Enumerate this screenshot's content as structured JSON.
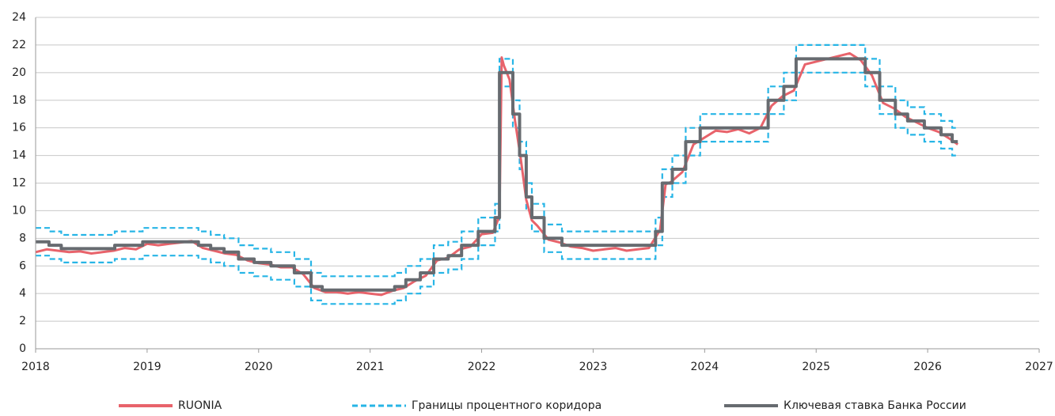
{
  "chart_data": {
    "type": "line",
    "xlim": [
      2018,
      2027
    ],
    "xticks": [
      2018,
      2019,
      2020,
      2021,
      2022,
      2023,
      2024,
      2025,
      2026,
      2027
    ],
    "ylim": [
      0,
      24
    ],
    "yticks": [
      0,
      2,
      4,
      6,
      8,
      10,
      12,
      14,
      16,
      18,
      20,
      22,
      24
    ],
    "grid": true,
    "legend": "bottom",
    "series": [
      {
        "name": "RUONIA",
        "color": "#e8636b",
        "x": [
          2018.0,
          2018.1,
          2018.2,
          2018.3,
          2018.4,
          2018.5,
          2018.6,
          2018.7,
          2018.8,
          2018.9,
          2019.0,
          2019.1,
          2019.2,
          2019.3,
          2019.4,
          2019.5,
          2019.6,
          2019.7,
          2019.8,
          2019.9,
          2020.0,
          2020.1,
          2020.2,
          2020.3,
          2020.4,
          2020.5,
          2020.6,
          2020.7,
          2020.8,
          2020.9,
          2021.0,
          2021.1,
          2021.2,
          2021.3,
          2021.4,
          2021.5,
          2021.6,
          2021.7,
          2021.8,
          2021.9,
          2022.0,
          2022.1,
          2022.16,
          2022.18,
          2022.2,
          2022.25,
          2022.3,
          2022.35,
          2022.4,
          2022.45,
          2022.5,
          2022.6,
          2022.7,
          2022.8,
          2022.9,
          2023.0,
          2023.1,
          2023.2,
          2023.3,
          2023.4,
          2023.5,
          2023.6,
          2023.65,
          2023.7,
          2023.8,
          2023.9,
          2024.0,
          2024.1,
          2024.2,
          2024.3,
          2024.4,
          2024.5,
          2024.6,
          2024.7,
          2024.8,
          2024.9,
          2025.0,
          2025.1,
          2025.2,
          2025.3,
          2025.4,
          2025.5,
          2025.6,
          2025.7,
          2025.8,
          2025.9,
          2026.0,
          2026.1,
          2026.2,
          2026.27
        ],
        "values": [
          7.0,
          7.2,
          7.1,
          7.0,
          7.05,
          6.9,
          7.0,
          7.1,
          7.3,
          7.2,
          7.6,
          7.5,
          7.6,
          7.7,
          7.8,
          7.3,
          7.1,
          6.9,
          6.8,
          6.4,
          6.2,
          6.1,
          5.9,
          5.9,
          5.4,
          4.4,
          4.1,
          4.1,
          4.0,
          4.1,
          4.0,
          3.9,
          4.2,
          4.4,
          4.9,
          5.3,
          6.4,
          6.6,
          7.2,
          7.4,
          8.3,
          8.4,
          9.6,
          21.1,
          20.5,
          19.5,
          16.5,
          13.8,
          10.8,
          9.3,
          8.9,
          7.9,
          7.7,
          7.4,
          7.3,
          7.1,
          7.2,
          7.3,
          7.1,
          7.2,
          7.3,
          8.6,
          11.9,
          12.1,
          12.8,
          14.8,
          15.3,
          15.8,
          15.7,
          15.9,
          15.6,
          16.0,
          17.6,
          18.3,
          18.7,
          20.6,
          20.8,
          21.0,
          21.2,
          21.4,
          20.9,
          19.8,
          17.8,
          17.4,
          16.8,
          16.4,
          16.0,
          15.7,
          15.2,
          14.8
        ]
      },
      {
        "name": "Границы процентного коридора",
        "color": "#27b5e6",
        "dash": true,
        "lower": [
          6.75,
          6.75,
          6.5,
          6.5,
          6.25,
          6.25,
          6.5,
          6.5,
          6.75,
          6.75,
          6.5,
          6.5,
          6.25,
          6.25,
          6,
          6,
          5.5,
          5.5,
          5.25,
          5.25,
          5,
          5,
          4.5,
          4.5,
          3.5,
          3.5,
          3.25,
          3.25,
          3.5,
          3.5,
          4,
          4,
          4.5,
          4.5,
          5.5,
          5.5,
          5.75,
          5.75,
          6.5,
          6.5,
          7.5,
          7.5,
          8.5,
          8.5,
          19,
          19,
          16,
          16,
          13,
          13,
          10,
          10,
          8.5,
          8.5,
          7,
          7,
          6.5,
          6.5,
          7.5,
          7.5,
          11,
          11,
          12,
          12,
          14,
          14,
          15,
          15,
          17,
          17,
          18,
          18,
          20,
          20,
          19,
          19,
          17,
          17,
          16,
          16,
          15.5,
          15.5,
          15,
          15,
          14.5,
          14.5,
          14,
          14
        ],
        "upper": [
          8.75,
          8.75,
          8.5,
          8.5,
          8.25,
          8.25,
          8.5,
          8.5,
          8.75,
          8.75,
          8.5,
          8.5,
          8.25,
          8.25,
          8,
          8,
          7.5,
          7.5,
          7.25,
          7.25,
          7,
          7,
          6.5,
          6.5,
          5.5,
          5.5,
          5.25,
          5.25,
          5.5,
          5.5,
          6,
          6,
          6.5,
          6.5,
          7.5,
          7.5,
          7.75,
          7.75,
          8.5,
          8.5,
          9.5,
          9.5,
          10.5,
          10.5,
          21,
          21,
          18,
          18,
          15,
          15,
          12,
          12,
          10.5,
          10.5,
          9,
          9,
          8.5,
          8.5,
          9.5,
          9.5,
          13,
          13,
          14,
          14,
          16,
          16,
          17,
          17,
          19,
          19,
          20,
          20,
          22,
          22,
          21,
          21,
          19,
          19,
          18,
          18,
          17.5,
          17.5,
          17,
          17,
          16.5,
          16.5,
          16,
          16
        ]
      },
      {
        "name": "Ключевая ставка Банка России",
        "color": "#676b70",
        "x": [
          2018.0,
          2018.12,
          2018.12,
          2018.23,
          2018.23,
          2018.71,
          2018.71,
          2018.96,
          2018.96,
          2019.46,
          2019.46,
          2019.57,
          2019.57,
          2019.69,
          2019.69,
          2019.82,
          2019.82,
          2019.96,
          2019.96,
          2020.11,
          2020.11,
          2020.32,
          2020.32,
          2020.47,
          2020.47,
          2020.57,
          2020.57,
          2021.22,
          2021.22,
          2021.32,
          2021.32,
          2021.45,
          2021.45,
          2021.57,
          2021.57,
          2021.7,
          2021.7,
          2021.82,
          2021.82,
          2021.97,
          2021.97,
          2022.12,
          2022.12,
          2022.16,
          2022.16,
          2022.28,
          2022.28,
          2022.34,
          2022.34,
          2022.4,
          2022.4,
          2022.45,
          2022.45,
          2022.56,
          2022.56,
          2022.72,
          2022.72,
          2023.56,
          2023.56,
          2023.62,
          2023.62,
          2023.71,
          2023.71,
          2023.83,
          2023.83,
          2023.96,
          2023.96,
          2024.57,
          2024.57,
          2024.71,
          2024.71,
          2024.82,
          2024.82,
          2025.44,
          2025.44,
          2025.57,
          2025.57,
          2025.71,
          2025.71,
          2025.82,
          2025.82,
          2025.97,
          2025.97,
          2026.12,
          2026.12,
          2026.22,
          2026.22,
          2026.27
        ],
        "values": [
          7.75,
          7.75,
          7.5,
          7.5,
          7.25,
          7.25,
          7.5,
          7.5,
          7.75,
          7.75,
          7.5,
          7.5,
          7.25,
          7.25,
          7,
          7,
          6.5,
          6.5,
          6.25,
          6.25,
          6,
          6,
          5.5,
          5.5,
          4.5,
          4.5,
          4.25,
          4.25,
          4.5,
          4.5,
          5,
          5,
          5.5,
          5.5,
          6.5,
          6.5,
          6.75,
          6.75,
          7.5,
          7.5,
          8.5,
          8.5,
          9.5,
          9.5,
          20,
          20,
          17,
          17,
          14,
          14,
          11,
          11,
          9.5,
          9.5,
          8,
          8,
          7.5,
          7.5,
          8.5,
          8.5,
          12,
          12,
          13,
          13,
          15,
          15,
          16,
          16,
          18,
          18,
          19,
          19,
          21,
          21,
          20,
          20,
          18,
          18,
          17,
          17,
          16.5,
          16.5,
          16,
          16,
          15.5,
          15.5,
          15,
          15
        ]
      }
    ]
  }
}
